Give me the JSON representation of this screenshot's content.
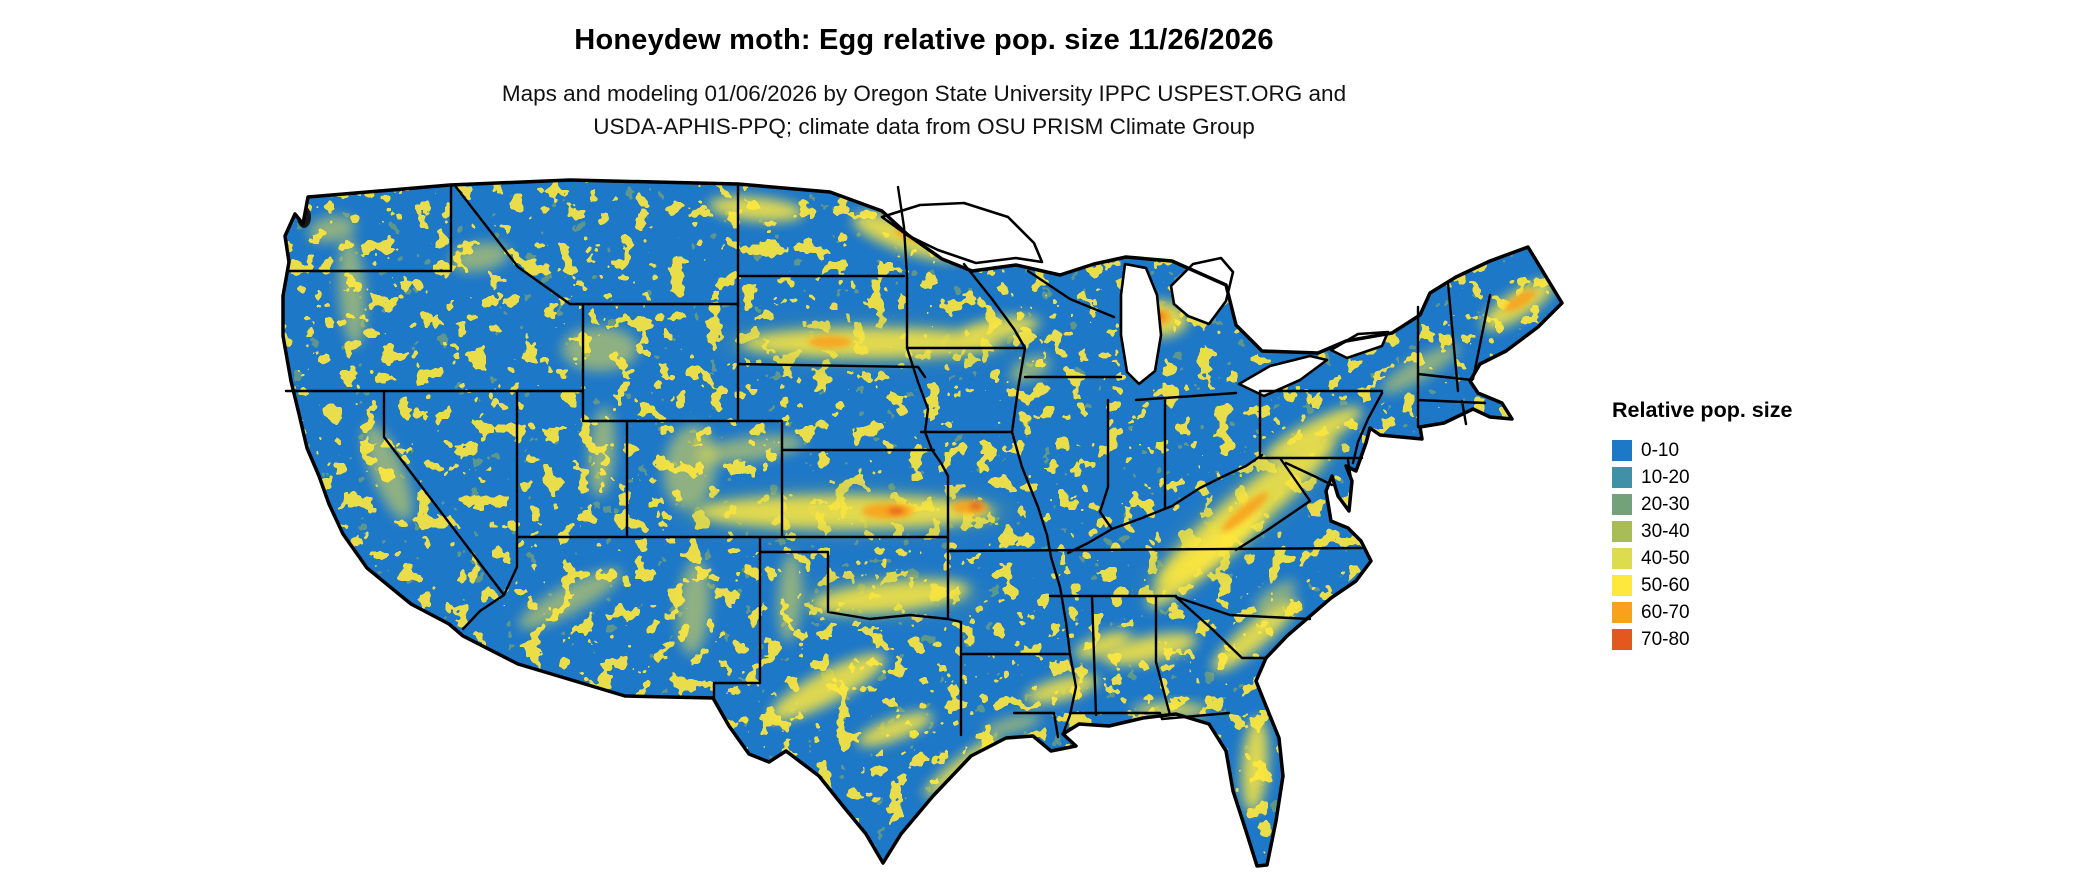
{
  "title": "Honeydew moth: Egg relative pop. size 11/26/2026",
  "subtitle_line1": "Maps and modeling 01/06/2026 by Oregon State University IPPC USPEST.ORG and",
  "subtitle_line2": "USDA-APHIS-PPQ; climate data from OSU PRISM Climate Group",
  "figure": {
    "type": "choropleth-map",
    "region": "Contiguous United States",
    "background": "#ffffff",
    "border_color": "#000000"
  },
  "legend": {
    "title": "Relative pop. size",
    "items": [
      {
        "label": "0-10",
        "color": "#1e78c8"
      },
      {
        "label": "10-20",
        "color": "#4090a8"
      },
      {
        "label": "20-30",
        "color": "#72a17a"
      },
      {
        "label": "30-40",
        "color": "#a8bd56"
      },
      {
        "label": "40-50",
        "color": "#dcdc4e"
      },
      {
        "label": "50-60",
        "color": "#ffe83c"
      },
      {
        "label": "60-70",
        "color": "#f9a11b"
      },
      {
        "label": "70-80",
        "color": "#e2581e"
      }
    ]
  }
}
